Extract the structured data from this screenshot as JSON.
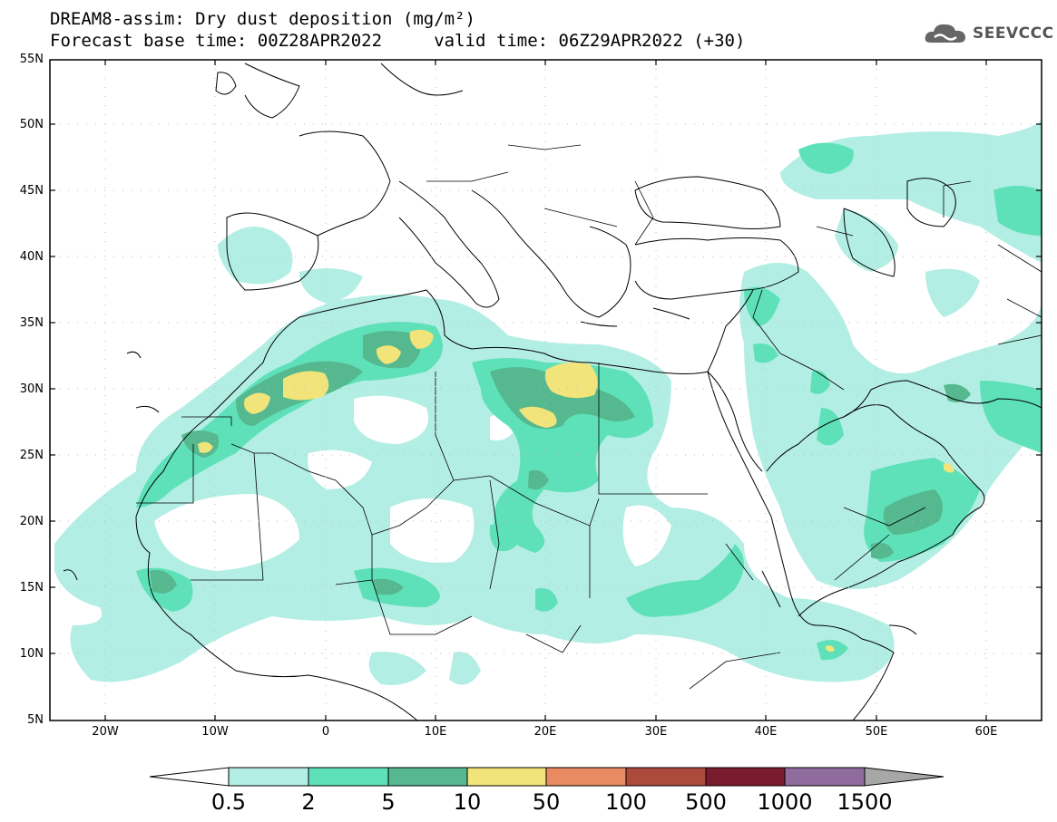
{
  "header": {
    "title_line1": "DREAM8-assim: Dry dust deposition (mg/m²)",
    "title_line2": "Forecast base time: 00Z28APR2022     valid time: 06Z29APR2022 (+30)",
    "logo_text": "SEEVCCC"
  },
  "axes": {
    "lat_labels": [
      "55N",
      "50N",
      "45N",
      "40N",
      "35N",
      "30N",
      "25N",
      "20N",
      "15N",
      "10N",
      "5N"
    ],
    "lon_labels": [
      "20W",
      "10W",
      "0",
      "10E",
      "20E",
      "30E",
      "40E",
      "50E",
      "60E"
    ]
  },
  "colorbar": {
    "labels": [
      "0.5",
      "2",
      "5",
      "10",
      "50",
      "100",
      "500",
      "1000",
      "1500"
    ],
    "colors": [
      "#b3eee4",
      "#5ee1b8",
      "#55b88e",
      "#f1e47a",
      "#e98a62",
      "#ad4a3b",
      "#7a1b2e",
      "#8f6b9e",
      "#a7a7a7"
    ]
  },
  "colors": {
    "level_0_5": "#b3eee4",
    "level_2": "#5ee1b8",
    "level_5": "#55b88e",
    "level_10": "#f1e47a",
    "coast": "#000000"
  }
}
